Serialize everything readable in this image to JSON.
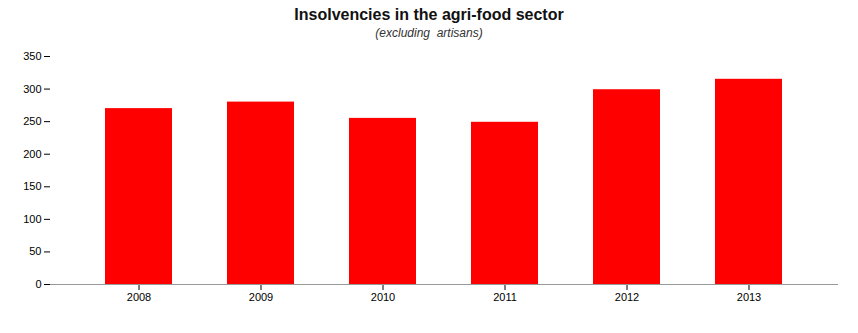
{
  "chart_data": {
    "type": "bar",
    "title": "Insolvencies in the agri-food sector",
    "subtitle": "(excluding  artisans)",
    "categories": [
      "2008",
      "2009",
      "2010",
      "2011",
      "2012",
      "2013"
    ],
    "values": [
      270,
      280,
      255,
      249,
      299,
      315
    ],
    "color": "#ff0000",
    "ylim": [
      0,
      350
    ],
    "yticks": [
      0,
      50,
      100,
      150,
      200,
      250,
      300,
      350
    ],
    "grid": false
  }
}
